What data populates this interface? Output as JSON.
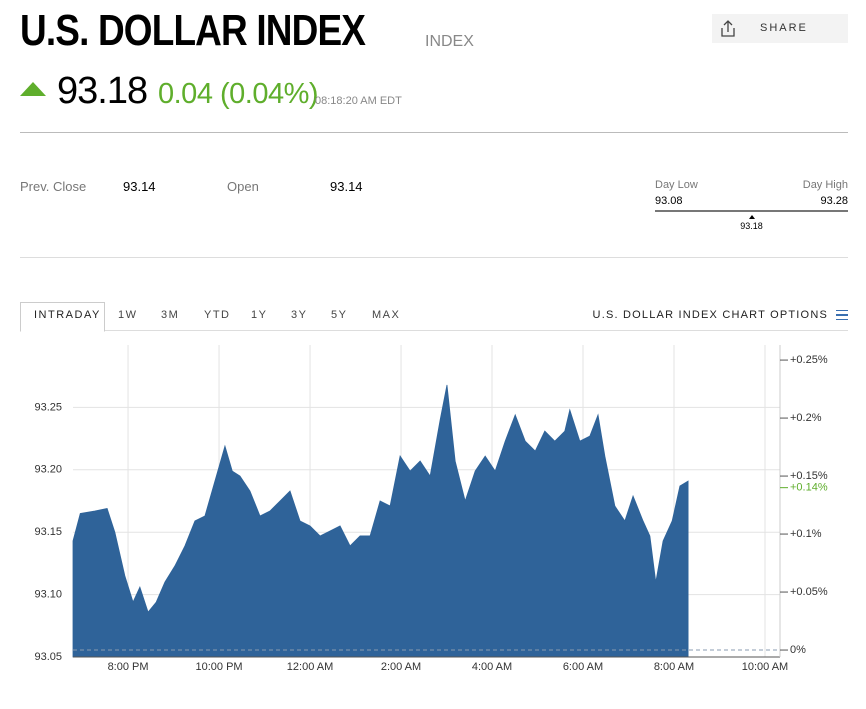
{
  "header": {
    "title": "U.S. DOLLAR INDEX",
    "tag": "INDEX",
    "price": "93.18",
    "change": "0.04 (0.04%)",
    "time": "08:18:20 AM EDT",
    "share": "SHARE"
  },
  "stats": {
    "prev_close_label": "Prev. Close",
    "prev_close": 93.14,
    "open_label": "Open",
    "open": 93.14,
    "day_low_label": "Day Low",
    "day_low": 93.08,
    "day_high_label": "Day High",
    "day_high": 93.28,
    "current": 93.18
  },
  "tabs": [
    "INTRADAY",
    "1W",
    "3M",
    "YTD",
    "1Y",
    "3Y",
    "5Y",
    "MAX"
  ],
  "chart_options": "U.S. DOLLAR INDEX CHART OPTIONS",
  "chart_data": {
    "type": "area",
    "color": "#2f6399",
    "grid": true,
    "x": [
      18.79,
      18.95,
      19.27,
      19.54,
      19.71,
      19.93,
      20.11,
      20.26,
      20.44,
      20.62,
      20.81,
      21.03,
      21.25,
      21.47,
      21.69,
      21.91,
      22.13,
      22.29,
      22.46,
      22.68,
      22.9,
      23.12,
      23.34,
      23.56,
      23.78,
      24.0,
      24.22,
      24.44,
      24.66,
      24.88,
      25.1,
      25.32,
      25.54,
      25.76,
      25.98,
      26.2,
      26.42,
      26.64,
      26.86,
      27.01,
      27.19,
      27.41,
      27.63,
      27.85,
      28.07,
      28.29,
      28.51,
      28.73,
      28.95,
      29.16,
      29.38,
      29.6,
      29.71,
      29.93,
      30.15,
      30.33,
      30.48,
      30.7,
      30.92,
      31.1,
      31.32,
      31.47,
      31.6,
      31.76,
      31.96,
      32.13,
      32.31
    ],
    "values": [
      93.143,
      93.165,
      93.167,
      93.169,
      93.15,
      93.115,
      93.094,
      93.106,
      93.086,
      93.094,
      93.11,
      93.123,
      93.139,
      93.159,
      93.163,
      93.191,
      93.219,
      93.199,
      93.195,
      93.183,
      93.163,
      93.167,
      93.175,
      93.183,
      93.159,
      93.155,
      93.147,
      93.151,
      93.155,
      93.139,
      93.147,
      93.147,
      93.175,
      93.171,
      93.211,
      93.199,
      93.207,
      93.195,
      93.24,
      93.268,
      93.207,
      93.175,
      93.199,
      93.211,
      93.199,
      93.223,
      93.244,
      93.223,
      93.215,
      93.231,
      93.223,
      93.231,
      93.248,
      93.223,
      93.227,
      93.244,
      93.211,
      93.171,
      93.159,
      93.179,
      93.159,
      93.147,
      93.11,
      93.143,
      93.159,
      93.187,
      93.191
    ],
    "xlim": [
      18.79,
      34.33
    ],
    "xticks": [
      {
        "value": 20,
        "label": "8:00 PM"
      },
      {
        "value": 22,
        "label": "10:00 PM"
      },
      {
        "value": 24,
        "label": "12:00 AM"
      },
      {
        "value": 26,
        "label": "2:00 AM"
      },
      {
        "value": 28,
        "label": "4:00 AM"
      },
      {
        "value": 30,
        "label": "6:00 AM"
      },
      {
        "value": 32,
        "label": "8:00 AM"
      },
      {
        "value": 34,
        "label": "10:00 AM"
      }
    ],
    "ylim": [
      93.05,
      93.3
    ],
    "yticks": [
      93.05,
      {
        "value": 93.1,
        "label": "93.10"
      },
      93.15,
      {
        "value": 93.2,
        "label": "93.20"
      },
      93.25
    ],
    "y2lim": [
      -0.006,
      0.263
    ],
    "y2ticks": [
      {
        "value": 0,
        "label": "0%"
      },
      {
        "value": 0.05,
        "label": "+0.05%"
      },
      {
        "value": 0.1,
        "label": "+0.1%"
      },
      {
        "value": 0.15,
        "label": "+0.15%"
      },
      {
        "value": 0.2,
        "label": "+0.2%"
      },
      {
        "value": 0.25,
        "label": "+0.25%"
      }
    ],
    "y2_marker": {
      "value": 0.14,
      "label": "+0.14%"
    }
  }
}
